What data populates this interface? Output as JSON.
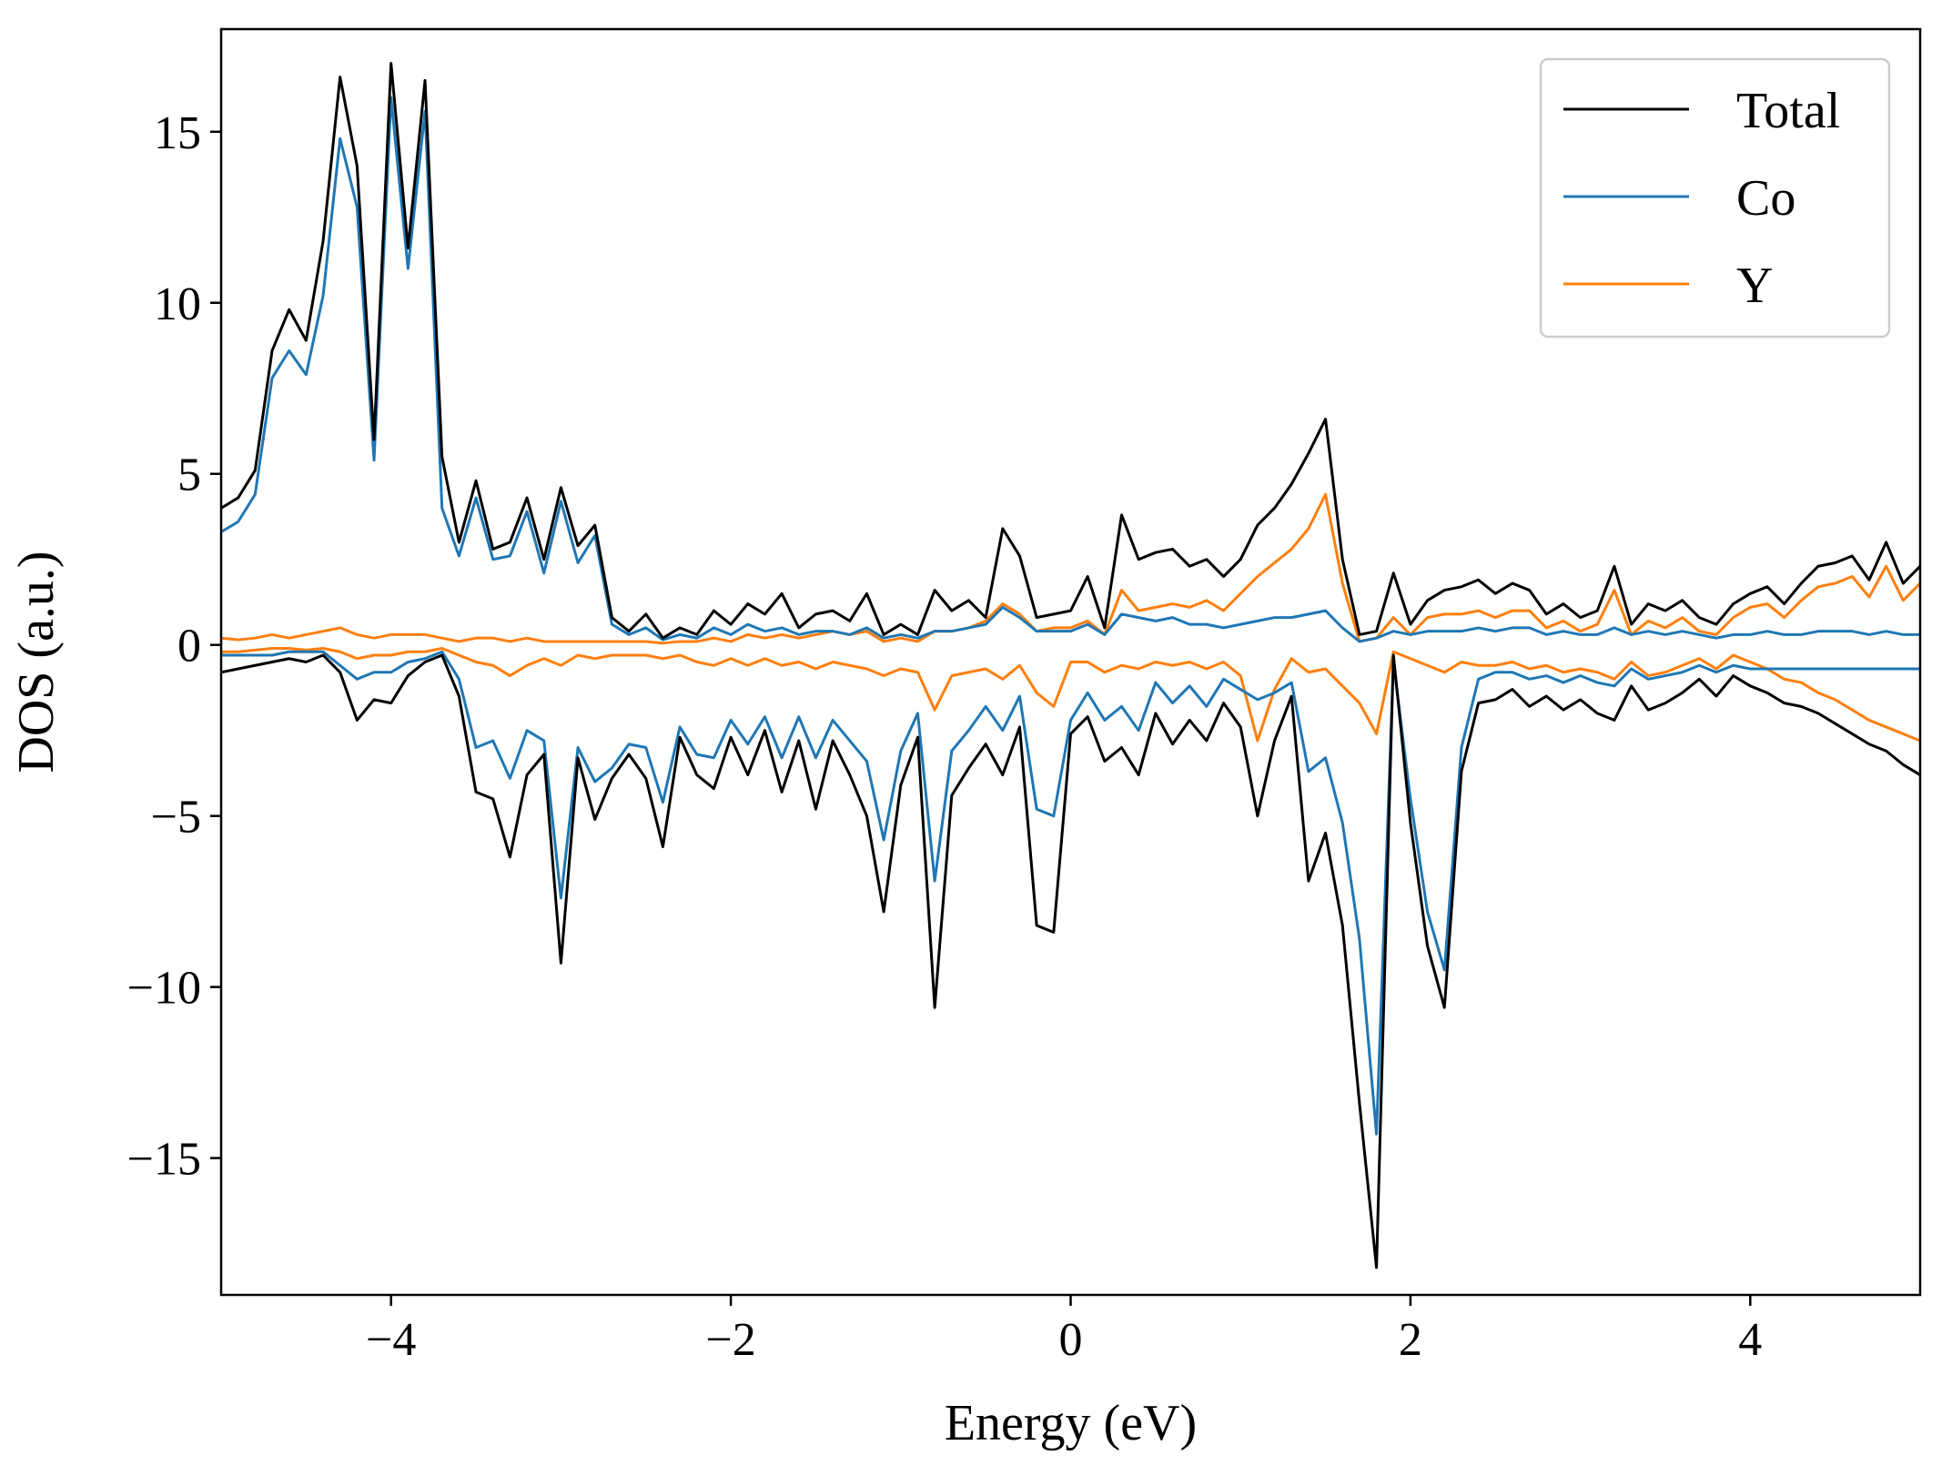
{
  "chart_data": {
    "type": "line",
    "title": "",
    "xlabel": "Energy (eV)",
    "ylabel": "DOS (a.u.)",
    "xlim": [
      -5,
      5
    ],
    "ylim": [
      -19,
      18
    ],
    "xticks": [
      -4,
      -2,
      0,
      2,
      4
    ],
    "yticks": [
      -15,
      -10,
      -5,
      0,
      5,
      10,
      15
    ],
    "xtick_labels": [
      "−4",
      "−2",
      "0",
      "2",
      "4"
    ],
    "ytick_labels": [
      "−15",
      "−10",
      "−5",
      "0",
      "5",
      "10",
      "15"
    ],
    "grid": false,
    "legend_position": "top-right",
    "legend": [
      "Total",
      "Co",
      "Y"
    ],
    "colors": {
      "Total": "#000000",
      "Co": "#1f77b4",
      "Y": "#ff7f0e"
    },
    "x": [
      -5.0,
      -4.9,
      -4.8,
      -4.7,
      -4.6,
      -4.5,
      -4.4,
      -4.3,
      -4.2,
      -4.1,
      -4.0,
      -3.9,
      -3.8,
      -3.7,
      -3.6,
      -3.5,
      -3.4,
      -3.3,
      -3.2,
      -3.1,
      -3.0,
      -2.9,
      -2.8,
      -2.7,
      -2.6,
      -2.5,
      -2.4,
      -2.3,
      -2.2,
      -2.1,
      -2.0,
      -1.9,
      -1.8,
      -1.7,
      -1.6,
      -1.5,
      -1.4,
      -1.3,
      -1.2,
      -1.1,
      -1.0,
      -0.9,
      -0.8,
      -0.7,
      -0.6,
      -0.5,
      -0.4,
      -0.3,
      -0.2,
      -0.1,
      0.0,
      0.1,
      0.2,
      0.3,
      0.4,
      0.5,
      0.6,
      0.7,
      0.8,
      0.9,
      1.0,
      1.1,
      1.2,
      1.3,
      1.4,
      1.5,
      1.6,
      1.7,
      1.8,
      1.9,
      2.0,
      2.1,
      2.2,
      2.3,
      2.4,
      2.5,
      2.6,
      2.7,
      2.8,
      2.9,
      3.0,
      3.1,
      3.2,
      3.3,
      3.4,
      3.5,
      3.6,
      3.7,
      3.8,
      3.9,
      4.0,
      4.1,
      4.2,
      4.3,
      4.4,
      4.5,
      4.6,
      4.7,
      4.8,
      4.9,
      5.0
    ],
    "series": [
      {
        "name": "Total",
        "spin_up": [
          4.0,
          4.3,
          5.1,
          8.6,
          9.8,
          8.9,
          11.8,
          16.6,
          14.0,
          6.0,
          17.0,
          11.6,
          16.5,
          5.5,
          3.0,
          4.8,
          2.8,
          3.0,
          4.3,
          2.5,
          4.6,
          2.9,
          3.5,
          0.8,
          0.4,
          0.9,
          0.2,
          0.5,
          0.3,
          1.0,
          0.6,
          1.2,
          0.9,
          1.5,
          0.5,
          0.9,
          1.0,
          0.7,
          1.5,
          0.3,
          0.6,
          0.3,
          1.6,
          1.0,
          1.3,
          0.8,
          3.4,
          2.6,
          0.8,
          0.9,
          1.0,
          2.0,
          0.5,
          3.8,
          2.5,
          2.7,
          2.8,
          2.3,
          2.5,
          2.0,
          2.5,
          3.5,
          4.0,
          4.7,
          5.6,
          6.6,
          2.5,
          0.3,
          0.4,
          2.1,
          0.6,
          1.3,
          1.6,
          1.7,
          1.9,
          1.5,
          1.8,
          1.6,
          0.9,
          1.2,
          0.8,
          1.0,
          2.3,
          0.6,
          1.2,
          1.0,
          1.3,
          0.8,
          0.6,
          1.2,
          1.5,
          1.7,
          1.2,
          1.8,
          2.3,
          2.4,
          2.6,
          1.9,
          3.0,
          1.8,
          2.3
        ],
        "spin_down": [
          -0.8,
          -0.7,
          -0.6,
          -0.5,
          -0.4,
          -0.5,
          -0.3,
          -0.8,
          -2.2,
          -1.6,
          -1.7,
          -0.9,
          -0.5,
          -0.3,
          -1.5,
          -4.3,
          -4.5,
          -6.2,
          -3.8,
          -3.2,
          -9.3,
          -3.3,
          -5.1,
          -3.9,
          -3.2,
          -3.9,
          -5.9,
          -2.7,
          -3.8,
          -4.2,
          -2.7,
          -3.8,
          -2.5,
          -4.3,
          -2.8,
          -4.8,
          -2.8,
          -3.8,
          -5.0,
          -7.8,
          -4.1,
          -2.7,
          -10.6,
          -4.4,
          -3.6,
          -2.9,
          -3.8,
          -2.4,
          -8.2,
          -8.4,
          -2.6,
          -2.1,
          -3.4,
          -3.0,
          -3.8,
          -2.0,
          -2.9,
          -2.2,
          -2.8,
          -1.7,
          -2.4,
          -5.0,
          -2.8,
          -1.5,
          -6.9,
          -5.5,
          -8.2,
          -13.4,
          -18.2,
          -0.3,
          -5.2,
          -8.8,
          -10.6,
          -3.7,
          -1.7,
          -1.6,
          -1.3,
          -1.8,
          -1.5,
          -1.9,
          -1.6,
          -2.0,
          -2.2,
          -1.2,
          -1.9,
          -1.7,
          -1.4,
          -1.0,
          -1.5,
          -0.9,
          -1.2,
          -1.4,
          -1.7,
          -1.8,
          -2.0,
          -2.3,
          -2.6,
          -2.9,
          -3.1,
          -3.5,
          -3.8
        ]
      },
      {
        "name": "Co",
        "spin_up": [
          3.3,
          3.6,
          4.4,
          7.8,
          8.6,
          7.9,
          10.2,
          14.8,
          12.8,
          5.4,
          16.0,
          11.0,
          15.6,
          4.0,
          2.6,
          4.3,
          2.5,
          2.6,
          3.9,
          2.1,
          4.2,
          2.4,
          3.2,
          0.6,
          0.3,
          0.5,
          0.15,
          0.3,
          0.2,
          0.5,
          0.3,
          0.6,
          0.4,
          0.5,
          0.3,
          0.4,
          0.4,
          0.3,
          0.5,
          0.2,
          0.3,
          0.2,
          0.4,
          0.4,
          0.5,
          0.6,
          1.1,
          0.8,
          0.4,
          0.4,
          0.4,
          0.6,
          0.3,
          0.9,
          0.8,
          0.7,
          0.8,
          0.6,
          0.6,
          0.5,
          0.6,
          0.7,
          0.8,
          0.8,
          0.9,
          1.0,
          0.5,
          0.1,
          0.2,
          0.4,
          0.3,
          0.4,
          0.4,
          0.4,
          0.5,
          0.4,
          0.5,
          0.5,
          0.3,
          0.4,
          0.3,
          0.3,
          0.5,
          0.3,
          0.4,
          0.3,
          0.4,
          0.3,
          0.2,
          0.3,
          0.3,
          0.4,
          0.3,
          0.3,
          0.4,
          0.4,
          0.4,
          0.3,
          0.4,
          0.3,
          0.3
        ],
        "spin_down": [
          -0.3,
          -0.3,
          -0.3,
          -0.3,
          -0.2,
          -0.2,
          -0.2,
          -0.6,
          -1.0,
          -0.8,
          -0.8,
          -0.5,
          -0.4,
          -0.2,
          -1.0,
          -3.0,
          -2.8,
          -3.9,
          -2.5,
          -2.8,
          -7.4,
          -3.0,
          -4.0,
          -3.6,
          -2.9,
          -3.0,
          -4.6,
          -2.4,
          -3.2,
          -3.3,
          -2.2,
          -2.9,
          -2.1,
          -3.3,
          -2.1,
          -3.3,
          -2.2,
          -2.8,
          -3.4,
          -5.7,
          -3.1,
          -2.0,
          -6.9,
          -3.1,
          -2.5,
          -1.8,
          -2.5,
          -1.5,
          -4.8,
          -5.0,
          -2.2,
          -1.4,
          -2.2,
          -1.8,
          -2.5,
          -1.1,
          -1.7,
          -1.2,
          -1.8,
          -1.0,
          -1.3,
          -1.6,
          -1.4,
          -1.1,
          -3.7,
          -3.3,
          -5.2,
          -8.6,
          -14.3,
          -0.5,
          -4.5,
          -7.8,
          -9.5,
          -3.0,
          -1.0,
          -0.8,
          -0.8,
          -1.0,
          -0.9,
          -1.1,
          -0.9,
          -1.1,
          -1.2,
          -0.7,
          -1.0,
          -0.9,
          -0.8,
          -0.6,
          -0.8,
          -0.6,
          -0.7,
          -0.7,
          -0.7,
          -0.7,
          -0.7,
          -0.7,
          -0.7,
          -0.7,
          -0.7,
          -0.7,
          -0.7
        ]
      },
      {
        "name": "Y",
        "spin_up": [
          0.2,
          0.15,
          0.2,
          0.3,
          0.2,
          0.3,
          0.4,
          0.5,
          0.3,
          0.2,
          0.3,
          0.3,
          0.3,
          0.2,
          0.1,
          0.2,
          0.2,
          0.1,
          0.2,
          0.1,
          0.1,
          0.1,
          0.1,
          0.1,
          0.1,
          0.1,
          0.05,
          0.1,
          0.1,
          0.2,
          0.1,
          0.3,
          0.2,
          0.3,
          0.2,
          0.3,
          0.4,
          0.3,
          0.4,
          0.1,
          0.2,
          0.1,
          0.4,
          0.4,
          0.5,
          0.7,
          1.2,
          0.9,
          0.4,
          0.5,
          0.5,
          0.7,
          0.3,
          1.6,
          1.0,
          1.1,
          1.2,
          1.1,
          1.3,
          1.0,
          1.5,
          2.0,
          2.4,
          2.8,
          3.4,
          4.4,
          1.8,
          0.1,
          0.2,
          0.8,
          0.3,
          0.8,
          0.9,
          0.9,
          1.0,
          0.8,
          1.0,
          1.0,
          0.5,
          0.7,
          0.4,
          0.6,
          1.6,
          0.3,
          0.7,
          0.5,
          0.8,
          0.4,
          0.3,
          0.8,
          1.1,
          1.2,
          0.8,
          1.3,
          1.7,
          1.8,
          2.0,
          1.4,
          2.3,
          1.3,
          1.8
        ],
        "spin_down": [
          -0.2,
          -0.2,
          -0.15,
          -0.1,
          -0.1,
          -0.15,
          -0.1,
          -0.2,
          -0.4,
          -0.3,
          -0.3,
          -0.2,
          -0.2,
          -0.1,
          -0.3,
          -0.5,
          -0.6,
          -0.9,
          -0.6,
          -0.4,
          -0.6,
          -0.3,
          -0.4,
          -0.3,
          -0.3,
          -0.3,
          -0.4,
          -0.3,
          -0.5,
          -0.6,
          -0.4,
          -0.6,
          -0.4,
          -0.6,
          -0.5,
          -0.7,
          -0.5,
          -0.6,
          -0.7,
          -0.9,
          -0.7,
          -0.8,
          -1.9,
          -0.9,
          -0.8,
          -0.7,
          -1.0,
          -0.6,
          -1.4,
          -1.8,
          -0.5,
          -0.5,
          -0.8,
          -0.6,
          -0.7,
          -0.5,
          -0.6,
          -0.5,
          -0.7,
          -0.5,
          -0.9,
          -2.8,
          -1.3,
          -0.4,
          -0.8,
          -0.7,
          -1.2,
          -1.7,
          -2.6,
          -0.2,
          -0.4,
          -0.6,
          -0.8,
          -0.5,
          -0.6,
          -0.6,
          -0.5,
          -0.7,
          -0.6,
          -0.8,
          -0.7,
          -0.8,
          -1.0,
          -0.5,
          -0.9,
          -0.8,
          -0.6,
          -0.4,
          -0.7,
          -0.3,
          -0.5,
          -0.7,
          -1.0,
          -1.1,
          -1.4,
          -1.6,
          -1.9,
          -2.2,
          -2.4,
          -2.6,
          -2.8
        ]
      }
    ]
  }
}
